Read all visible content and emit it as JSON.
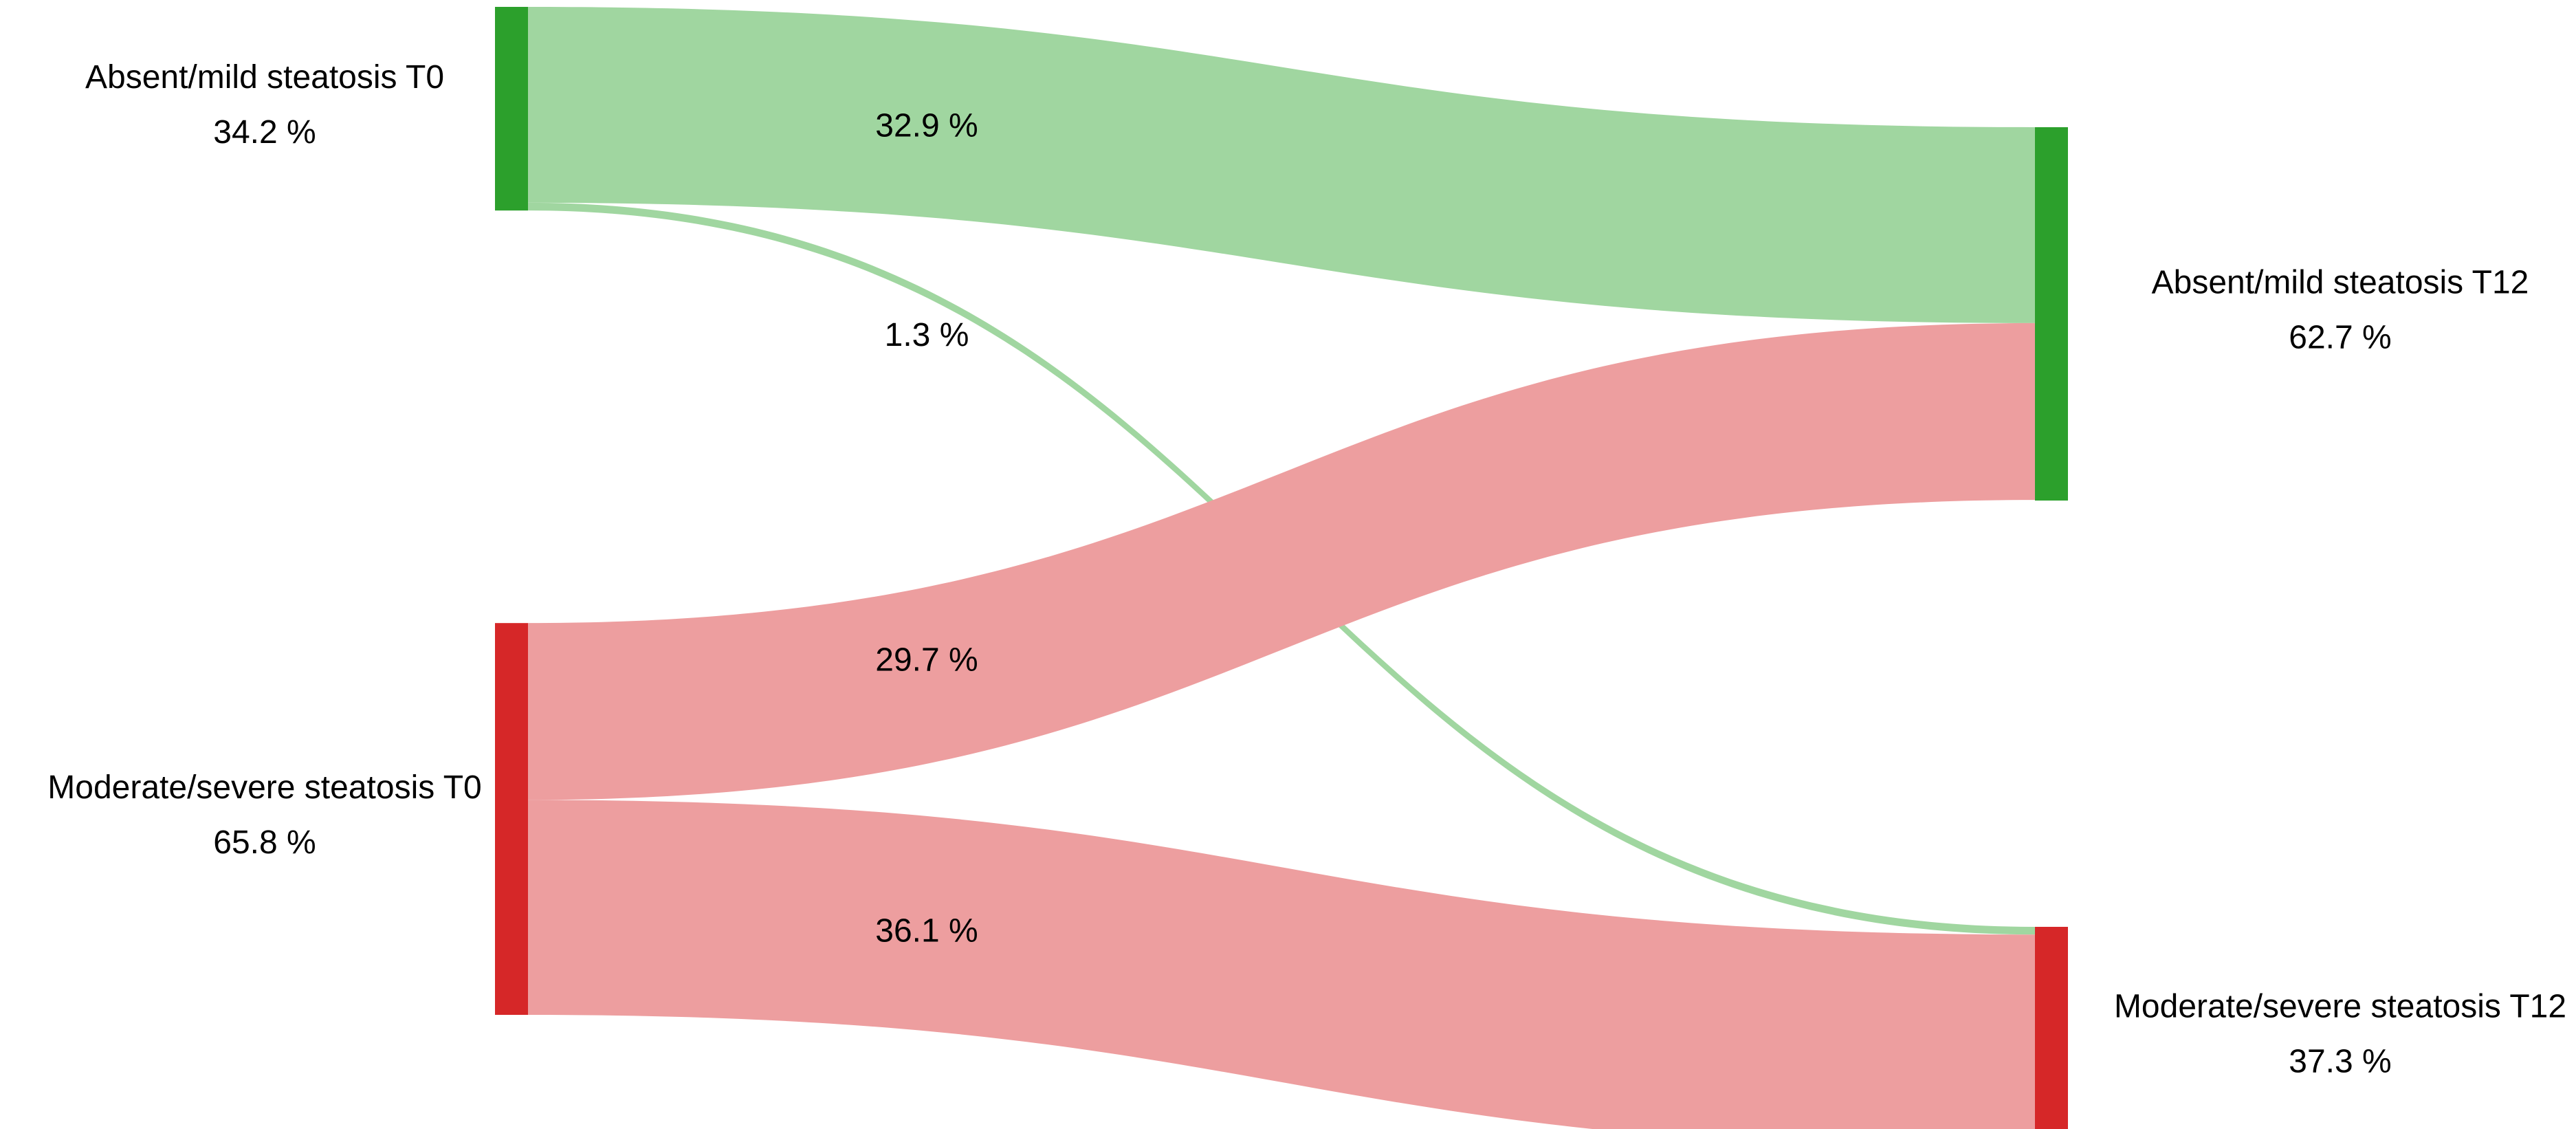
{
  "chart_data": {
    "type": "sankey",
    "title": "",
    "unit": "%",
    "nodes": [
      {
        "id": "t0_mild",
        "label": "Absent/mild steatosis T0",
        "value": 34.2,
        "column": 0,
        "color": "#2ca02c"
      },
      {
        "id": "t0_severe",
        "label": "Moderate/severe steatosis T0",
        "value": 65.8,
        "column": 0,
        "color": "#d62728"
      },
      {
        "id": "t12_mild",
        "label": "Absent/mild steatosis T12",
        "value": 62.7,
        "column": 1,
        "color": "#2ca02c"
      },
      {
        "id": "t12_severe",
        "label": "Moderate/severe steatosis T12",
        "value": 37.3,
        "column": 1,
        "color": "#d62728"
      }
    ],
    "links": [
      {
        "source": "t0_mild",
        "target": "t12_mild",
        "value": 32.9,
        "color": "#a0d6a0"
      },
      {
        "source": "t0_mild",
        "target": "t12_severe",
        "value": 1.3,
        "color": "#a0d6a0"
      },
      {
        "source": "t0_severe",
        "target": "t12_mild",
        "value": 29.7,
        "color": "#ed9e9f"
      },
      {
        "source": "t0_severe",
        "target": "t12_severe",
        "value": 36.1,
        "color": "#ed9e9f"
      }
    ]
  }
}
